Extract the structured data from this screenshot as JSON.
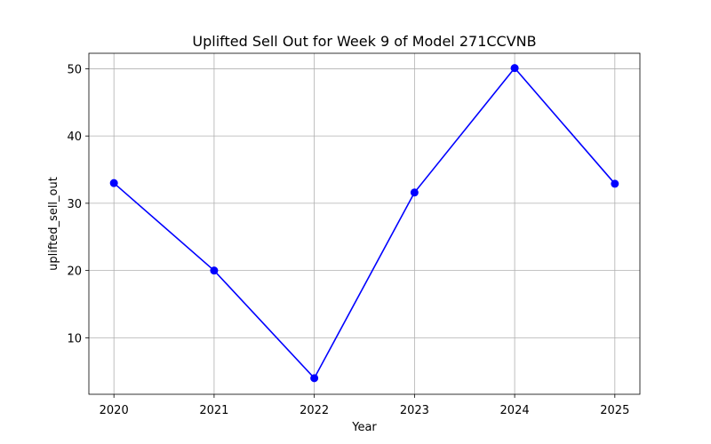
{
  "chart_data": {
    "type": "line",
    "title": "Uplifted Sell Out for Week 9 of Model 271CCVNB",
    "xlabel": "Year",
    "ylabel": "uplifted_sell_out",
    "x": [
      2020,
      2021,
      2022,
      2023,
      2024,
      2025
    ],
    "x_tick_labels": [
      "2020",
      "2021",
      "2022",
      "2023",
      "2024",
      "2025"
    ],
    "y_ticks": [
      10,
      20,
      30,
      40,
      50
    ],
    "y_tick_labels": [
      "10",
      "20",
      "30",
      "40",
      "50"
    ],
    "xlim": [
      2019.75,
      2025.25
    ],
    "ylim": [
      1.6,
      52.3
    ],
    "grid": true,
    "series": [
      {
        "color": "#0000ff",
        "marker": "circle",
        "values": [
          33.0,
          20.0,
          4.0,
          31.6,
          50.1,
          32.9
        ]
      }
    ]
  }
}
